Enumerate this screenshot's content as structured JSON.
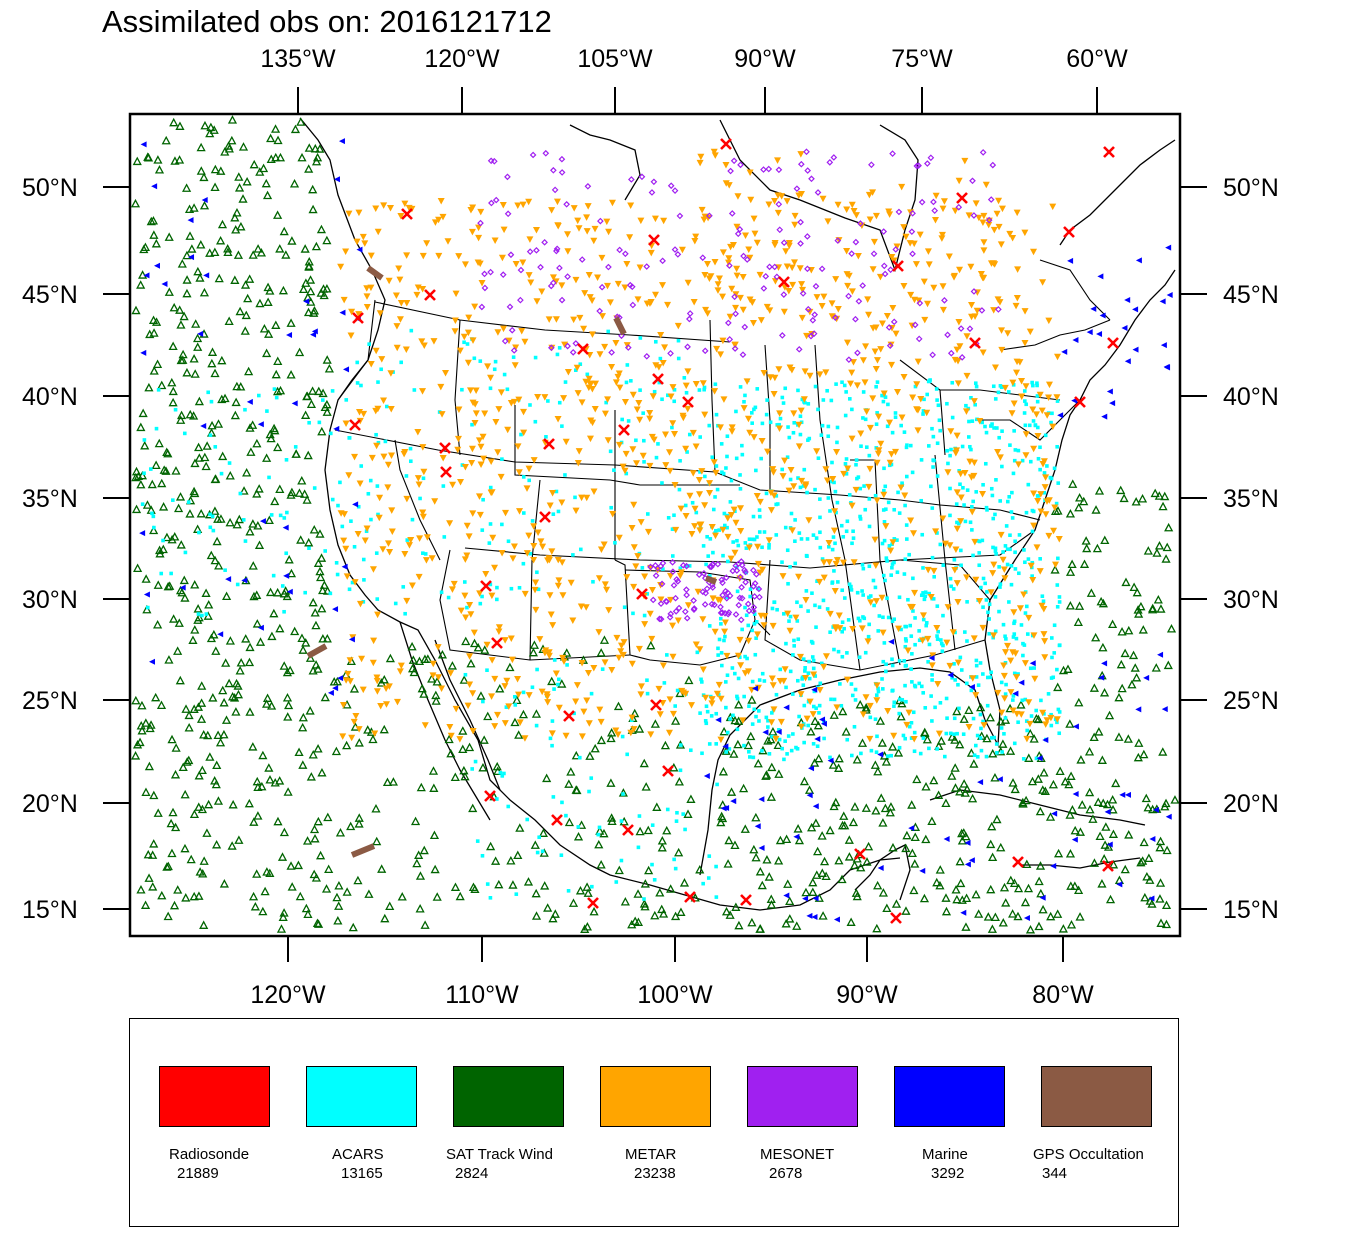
{
  "title": "Assimilated obs on: 2016121712",
  "top_lon_labels": [
    "135°W",
    "120°W",
    "105°W",
    "90°W",
    "75°W",
    "60°W"
  ],
  "bottom_lon_labels": [
    "120°W",
    "110°W",
    "100°W",
    "90°W",
    "80°W"
  ],
  "lat_labels": [
    "50°N",
    "45°N",
    "40°N",
    "35°N",
    "30°N",
    "25°N",
    "20°N",
    "15°N"
  ],
  "legend": [
    {
      "name": "Radiosonde",
      "count": "21889",
      "color": "#ff0000"
    },
    {
      "name": "ACARS",
      "count": "13165",
      "color": "#00ffff"
    },
    {
      "name": "SAT Track Wind",
      "count": "2824",
      "color": "#006400"
    },
    {
      "name": "METAR",
      "count": "23238",
      "color": "#ffa500"
    },
    {
      "name": "MESONET",
      "count": "2678",
      "color": "#a020f0"
    },
    {
      "name": "Marine",
      "count": "3292",
      "color": "#0000ff"
    },
    {
      "name": "GPS Occultation",
      "count": "344",
      "color": "#8b5a44"
    }
  ]
}
